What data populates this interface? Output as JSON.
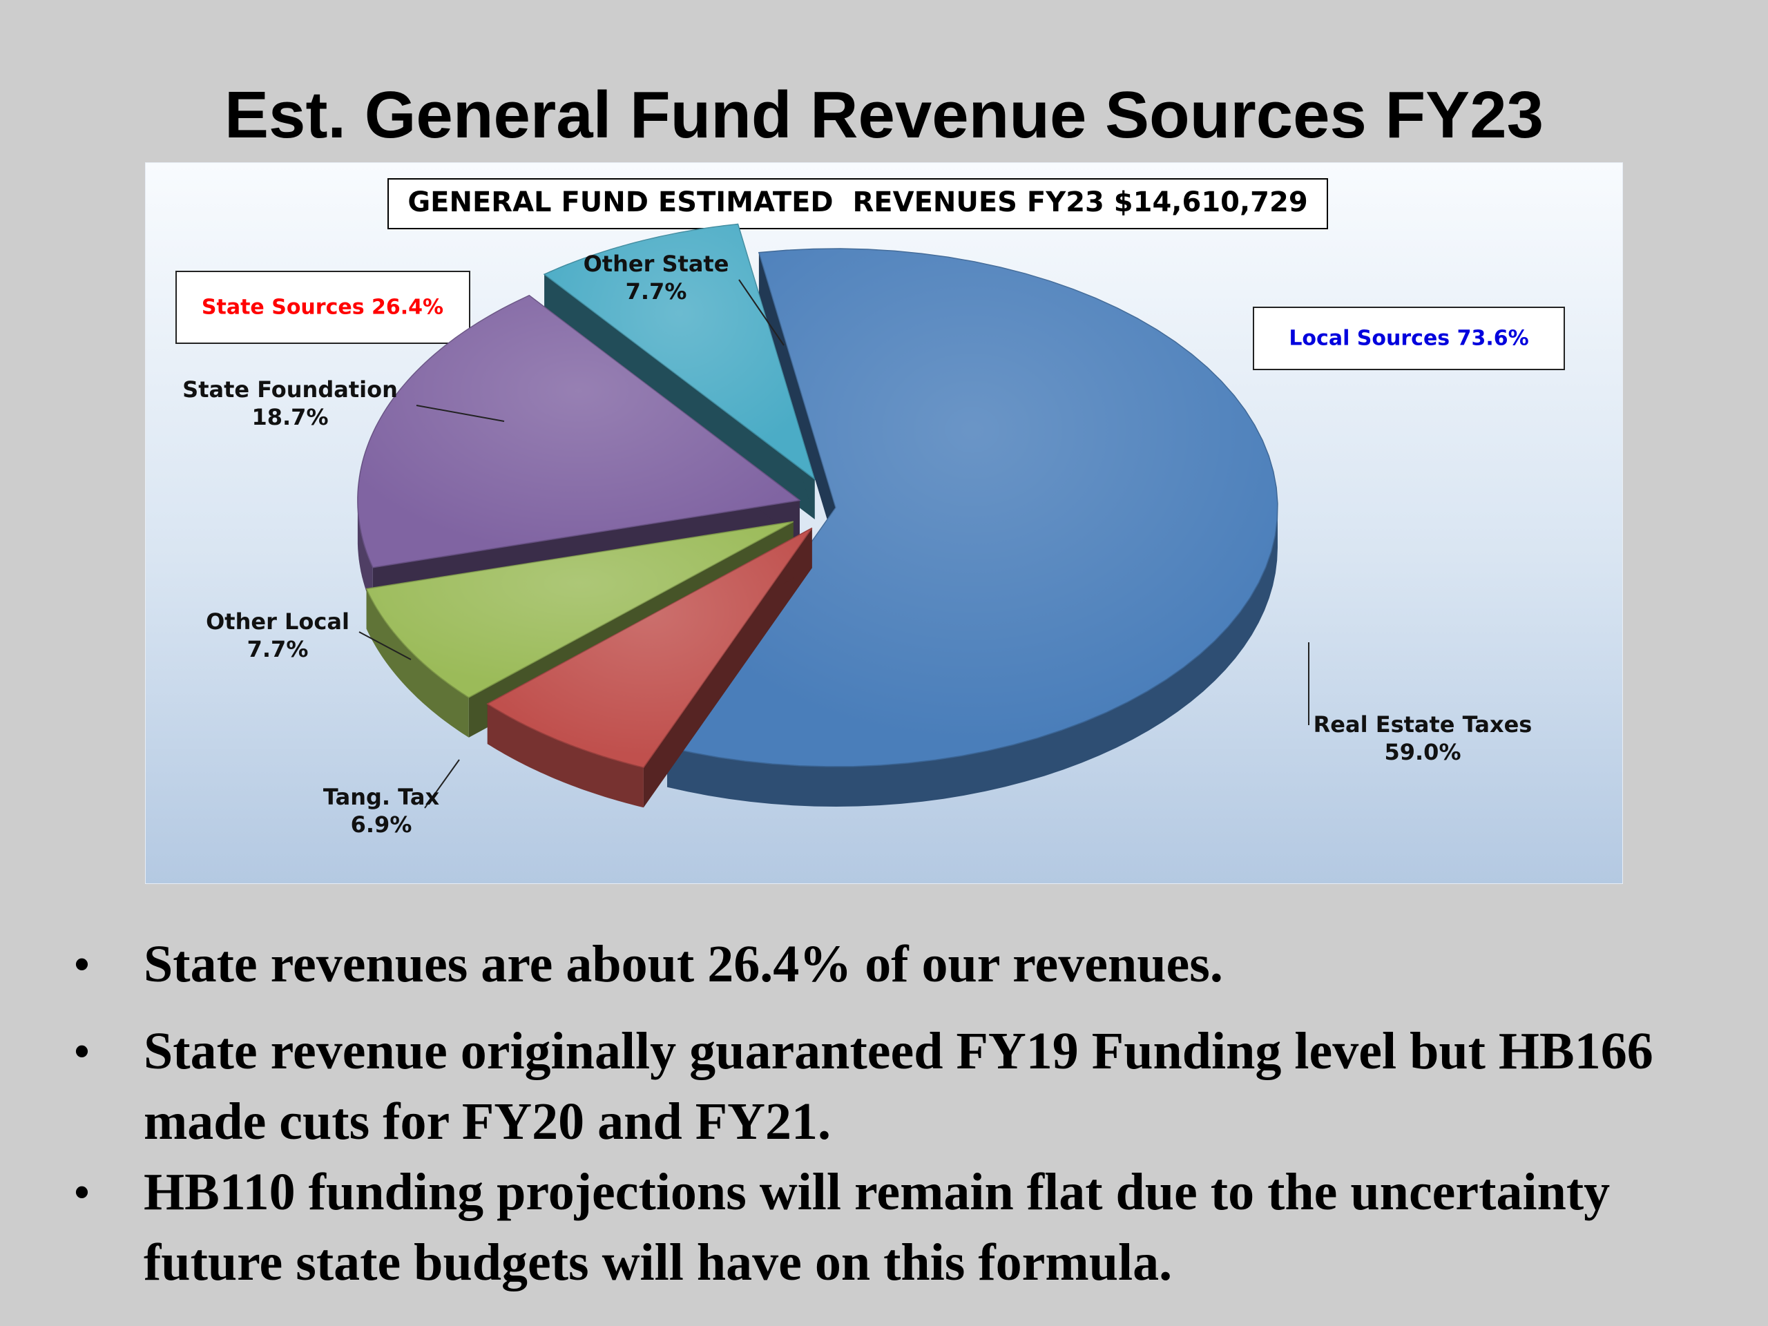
{
  "slide": {
    "title": "Est. General Fund Revenue Sources FY23",
    "bullets": [
      "State revenues are about 26.4% of our revenues.",
      "State revenue originally guaranteed FY19 Funding level but HB166 made cuts for FY20 and FY21.",
      "HB110 funding projections will remain flat due to the uncertainty future state budgets will have on this formula."
    ]
  },
  "chart_data": {
    "type": "pie",
    "title": "GENERAL FUND ESTIMATED  REVENUES FY23 $14,610,729",
    "slices": [
      {
        "name": "Real Estate Taxes",
        "label": "59.0%",
        "value": 59.0,
        "color": "#4a7eba"
      },
      {
        "name": "Tang. Tax",
        "label": "6.9%",
        "value": 6.9,
        "color": "#c0504d"
      },
      {
        "name": "Other Local",
        "label": "7.7%",
        "value": 7.7,
        "color": "#9bbb59"
      },
      {
        "name": "State Foundation",
        "label": "18.7%",
        "value": 18.7,
        "color": "#8064a2"
      },
      {
        "name": "Other State",
        "label": "7.7%",
        "value": 7.7,
        "color": "#4bacc6"
      }
    ],
    "groups": [
      {
        "label": "State Sources 26.4%",
        "color": "#ff0000"
      },
      {
        "label": "Local Sources 73.6%",
        "color": "#0000dd"
      }
    ],
    "style": "3d-exploded"
  }
}
